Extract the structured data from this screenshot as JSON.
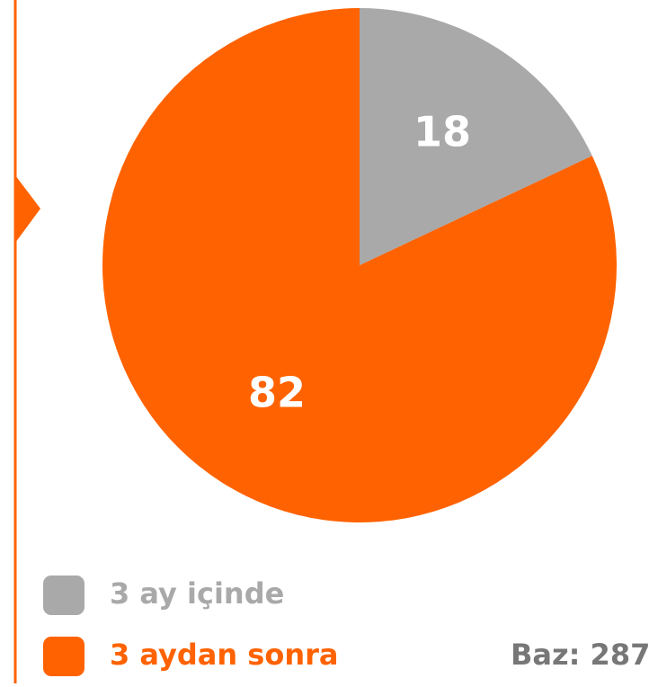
{
  "chart_data": {
    "type": "pie",
    "categories": [
      "3 ay içinde",
      "3 aydan sonra"
    ],
    "values": [
      18,
      82
    ],
    "colors": [
      "#a9a9a9",
      "#ff6200"
    ],
    "annotation": "Baz: 287",
    "legend": "bottom-left"
  }
}
